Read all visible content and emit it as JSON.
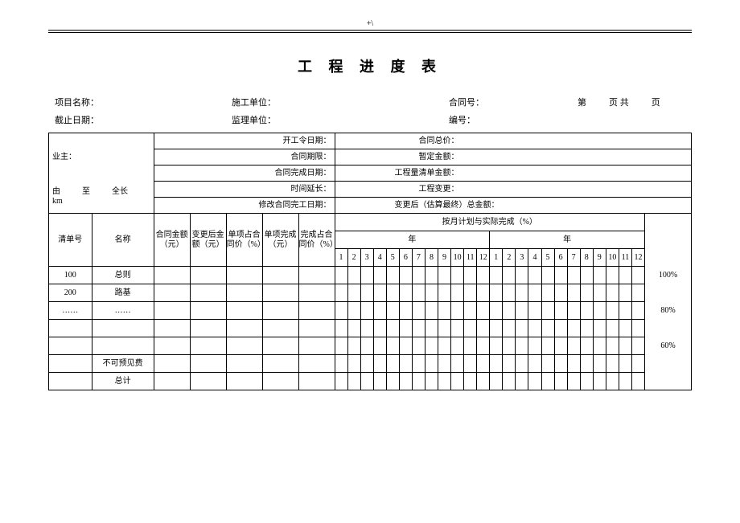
{
  "header_mark": "+\\",
  "title": "工 程 进 度 表",
  "meta": {
    "row1": {
      "project_name_lbl": "项目名称：",
      "construction_unit_lbl": "施工单位：",
      "contract_no_lbl": "合同号：",
      "page_lbl_a": "第",
      "page_lbl_b": "页 共",
      "page_lbl_c": "页"
    },
    "row2": {
      "deadline_lbl": "截止日期：",
      "supervisor_lbl": "监理单位：",
      "serial_lbl": "编号："
    }
  },
  "info": {
    "owner_lbl": "业主：",
    "start_order_date_lbl": "开工令日期：",
    "contract_total_lbl": "合同总价：",
    "contract_period_lbl": "合同期限：",
    "provisional_lbl": "暂定金额：",
    "contract_finish_lbl": "合同完成日期：",
    "boq_amount_lbl": "工程量清单金额：",
    "from_lbl": "由",
    "to_lbl": "至",
    "length_lbl": "全长",
    "km_lbl": "km",
    "time_ext_lbl": "时间延长：",
    "change_lbl": "工程变更：",
    "revised_finish_lbl": "修改合同完工日期：",
    "after_change_lbl": "变更后（估算最终）总金额："
  },
  "columns": {
    "id": "清单号",
    "name": "名称",
    "contract_amt": "合同金额（元）",
    "changed_amt": "变更后金额（元）",
    "item_pct": "单项占合同价（%）",
    "item_done": "单项完成（元）",
    "done_pct": "完成占合同价（%）",
    "monthly_header": "按月计划与实际完成（%）",
    "year": "年",
    "m1": "1",
    "m2": "2",
    "m3": "3",
    "m4": "4",
    "m5": "5",
    "m6": "6",
    "m7": "7",
    "m8": "8",
    "m9": "9",
    "m10": "10",
    "m11": "11",
    "m12": "12"
  },
  "pct_scale": {
    "p100": "100%",
    "p80": "80%",
    "p60": "60%"
  },
  "rows": [
    {
      "id": "100",
      "name": "总则"
    },
    {
      "id": "200",
      "name": "路基"
    },
    {
      "id": "……",
      "name": "……"
    },
    {
      "id": "",
      "name": ""
    },
    {
      "id": "",
      "name": ""
    },
    {
      "id": "",
      "name": "不可预见费"
    },
    {
      "id": "",
      "name": "总计"
    }
  ],
  "style": {
    "background": "#ffffff",
    "text_color": "#000000",
    "border_color": "#000000",
    "title_fontsize": 18,
    "body_fontsize": 11,
    "cell_fontsize": 10
  }
}
